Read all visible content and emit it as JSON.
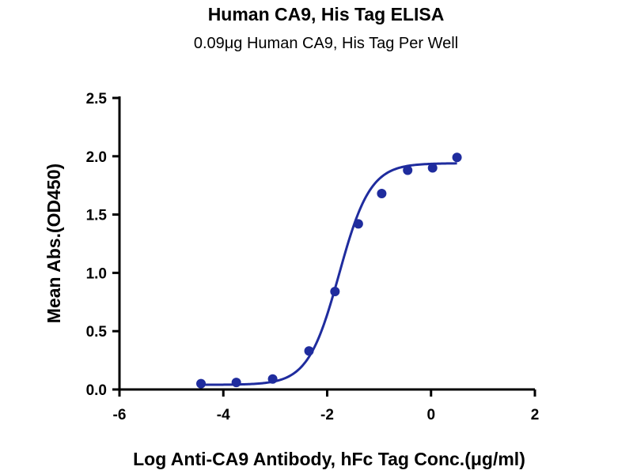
{
  "chart_data": {
    "type": "scatter",
    "title": "Human CA9, His Tag ELISA",
    "subtitle": "0.09μg Human CA9, His Tag Per Well",
    "xlabel": "Log Anti-CA9 Antibody, hFc Tag Conc.(μg/ml)",
    "ylabel": "Mean Abs.(OD450)",
    "xlim": [
      -6,
      2
    ],
    "ylim": [
      0,
      2.5
    ],
    "xticks": [
      -6,
      -4,
      -2,
      0,
      2
    ],
    "xtick_labels": [
      "-6",
      "-4",
      "-2",
      "0",
      "2"
    ],
    "yticks": [
      0,
      0.5,
      1.0,
      1.5,
      2.0,
      2.5
    ],
    "ytick_labels": [
      "0.0",
      "0.5",
      "1.0",
      "1.5",
      "2.0",
      "2.5"
    ],
    "grid": false,
    "series": [
      {
        "color": "#1f2c9e",
        "points": [
          {
            "x": -4.43,
            "y": 0.05
          },
          {
            "x": -3.75,
            "y": 0.06
          },
          {
            "x": -3.05,
            "y": 0.09
          },
          {
            "x": -2.35,
            "y": 0.33
          },
          {
            "x": -1.85,
            "y": 0.84
          },
          {
            "x": -1.4,
            "y": 1.42
          },
          {
            "x": -0.95,
            "y": 1.68
          },
          {
            "x": -0.45,
            "y": 1.88
          },
          {
            "x": 0.03,
            "y": 1.9
          },
          {
            "x": 0.5,
            "y": 1.99
          }
        ],
        "fit": {
          "model": "4PL",
          "bottom": 0.04,
          "top": 1.94,
          "log_ec50": -1.77,
          "hill_slope": 1.45,
          "x_range": [
            -4.43,
            0.5
          ]
        }
      }
    ]
  }
}
